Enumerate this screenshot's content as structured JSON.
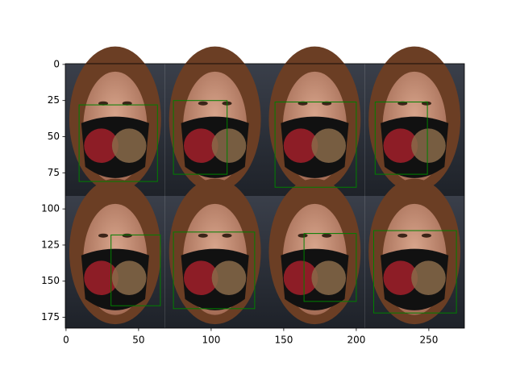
{
  "chart_data": {
    "type": "image",
    "xlim": [
      -0.5,
      274.5
    ],
    "ylim": [
      182.5,
      -0.5
    ],
    "xticks": [
      0,
      50,
      100,
      150,
      200,
      250
    ],
    "yticks": [
      0,
      25,
      50,
      75,
      100,
      125,
      150,
      175
    ],
    "box_color": "#008000",
    "boxes": [
      {
        "x": [
          9,
          63
        ],
        "y": [
          28,
          81
        ]
      },
      {
        "x": [
          74,
          111
        ],
        "y": [
          25,
          76
        ]
      },
      {
        "x": [
          144,
          200
        ],
        "y": [
          26,
          85
        ]
      },
      {
        "x": [
          213,
          249
        ],
        "y": [
          26,
          76
        ]
      },
      {
        "x": [
          31,
          65
        ],
        "y": [
          118,
          167
        ]
      },
      {
        "x": [
          74,
          130
        ],
        "y": [
          116,
          169
        ]
      },
      {
        "x": [
          164,
          200
        ],
        "y": [
          117,
          164
        ]
      },
      {
        "x": [
          212,
          269
        ],
        "y": [
          115,
          172
        ]
      }
    ]
  }
}
